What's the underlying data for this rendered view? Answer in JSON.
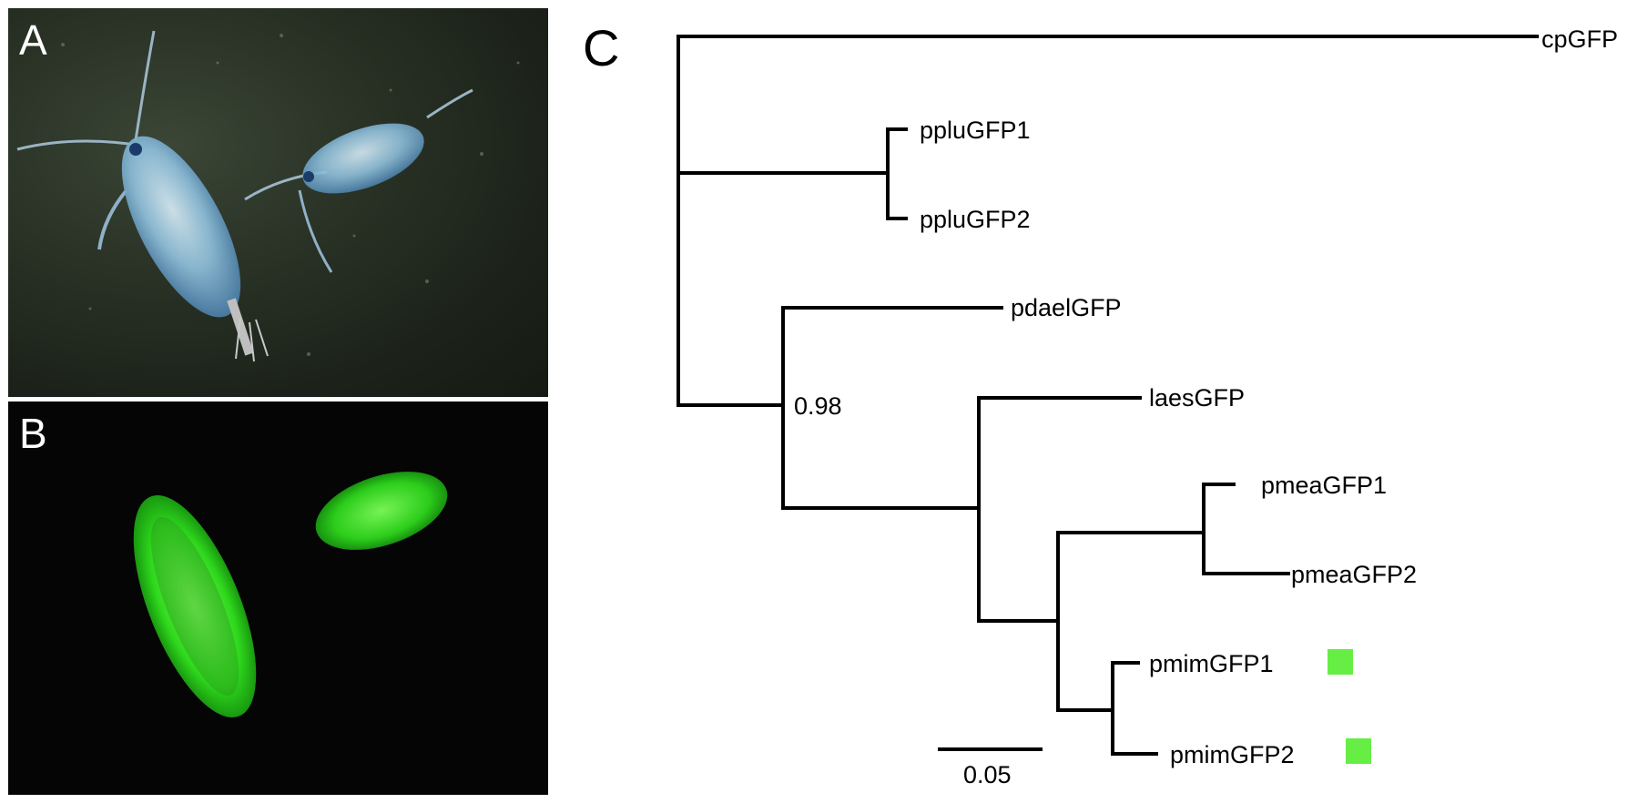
{
  "panels": {
    "a": {
      "label": "A"
    },
    "b": {
      "label": "B"
    },
    "c": {
      "label": "C"
    }
  },
  "tree": {
    "leaves": {
      "cpGFP": "cpGFP",
      "ppluGFP1": "ppluGFP1",
      "ppluGFP2": "ppluGFP2",
      "pdaelGFP": "pdaelGFP",
      "laesGFP": "laesGFP",
      "pmeaGFP1": "pmeaGFP1",
      "pmeaGFP2": "pmeaGFP2",
      "pmimGFP1": "pmimGFP1",
      "pmimGFP2": "pmimGFP2"
    },
    "support_value": "0.98",
    "scale_bar_label": "0.05",
    "marker_color": "#66ee44"
  }
}
